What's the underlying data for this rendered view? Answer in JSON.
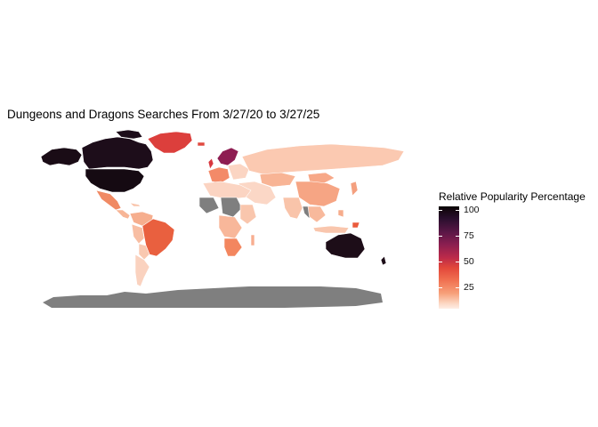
{
  "title": "Dungeons and Dragons Searches From 3/27/20 to 3/27/25",
  "legend": {
    "title": "Relative Popularity Percentage",
    "ticks": [
      "100",
      "75",
      "50",
      "25"
    ],
    "range": [
      0,
      100
    ]
  },
  "colors": {
    "no_data": "#7f7f7f",
    "scale_high": "#0b0405",
    "scale_low": "#feeee6"
  }
}
